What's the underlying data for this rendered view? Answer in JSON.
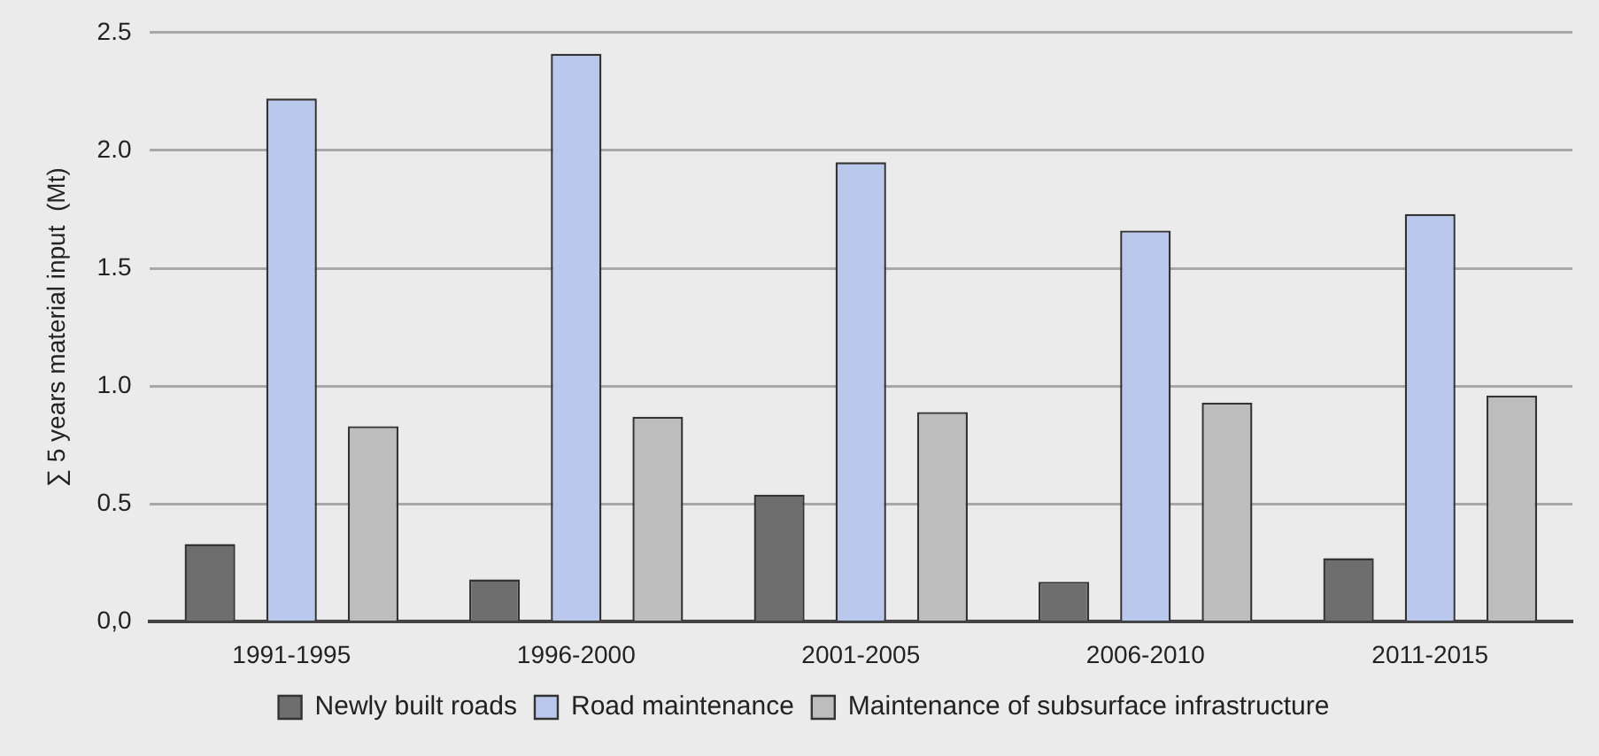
{
  "chart_data": {
    "type": "bar",
    "ylabel": "∑ 5 years material input  (Mt)",
    "categories": [
      "1991-1995",
      "1996-2000",
      "2001-2005",
      "2006-2010",
      "2011-2015"
    ],
    "series": [
      {
        "name": "Newly built roads",
        "color": "#6e6e6e",
        "values": [
          0.33,
          0.18,
          0.54,
          0.17,
          0.27
        ]
      },
      {
        "name": "Road maintenance",
        "color": "#b9c8ec",
        "values": [
          2.22,
          2.41,
          1.95,
          1.66,
          1.73
        ]
      },
      {
        "name": "Maintenance of subsurface infrastructure",
        "color": "#bdbdbd",
        "values": [
          0.83,
          0.87,
          0.89,
          0.93,
          0.96
        ]
      }
    ],
    "ylim": [
      0,
      2.5
    ],
    "yticks": [
      {
        "value": 0,
        "label": "0,0"
      },
      0.5,
      {
        "value": 1,
        "label": "1.0"
      },
      1.5,
      {
        "value": 2,
        "label": "2.0"
      },
      2.5
    ],
    "grid": "y",
    "legend": "bottom"
  }
}
